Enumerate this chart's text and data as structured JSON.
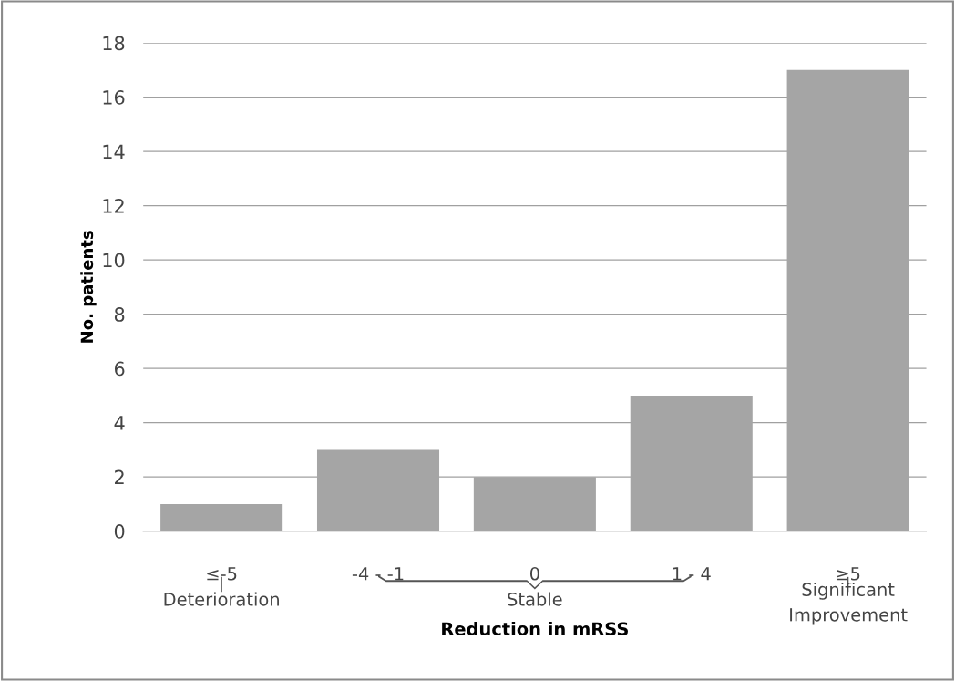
{
  "chart_data": {
    "type": "bar",
    "xlabel": "Reduction in mRSS",
    "ylabel": "No. patients",
    "categories": [
      "≤-5",
      "-4 - -1",
      "0",
      "1 - 4",
      "≥5"
    ],
    "values": [
      1,
      3,
      2,
      5,
      17
    ],
    "color": "#a5a5a5",
    "ylim": [
      0,
      18
    ],
    "yticks": [
      0,
      2,
      4,
      6,
      8,
      10,
      12,
      14,
      16,
      18
    ],
    "grid": "y",
    "legend": false,
    "annotations": [
      "Deterioration",
      "Stable",
      "Significant\nImprovement"
    ]
  }
}
